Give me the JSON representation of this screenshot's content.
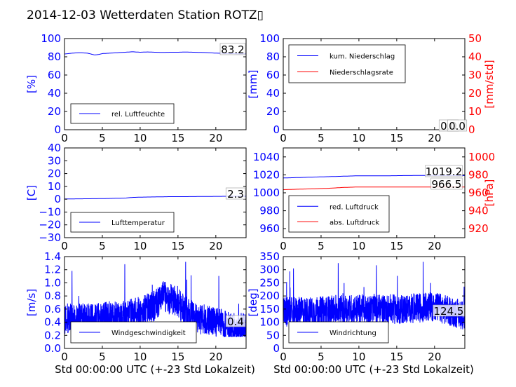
{
  "title": "2014-12-03 Wetterdaten Station ROTZ▯",
  "xlabel": "Std 00:00:00 UTC (+-23 Std Lokalzeit)",
  "colors": {
    "left_axis": "#0000ff",
    "right_axis": "#ff0000",
    "series_blue": "#0000ff",
    "series_red": "#ff0000",
    "frame": "#000000"
  },
  "chart_data": [
    {
      "id": "humidity",
      "type": "line",
      "xlim": [
        0,
        24
      ],
      "xticks": [
        0,
        5,
        10,
        15,
        20
      ],
      "ylabel": "[%]",
      "ylim": [
        0,
        100
      ],
      "yticks": [
        0,
        20,
        40,
        60,
        80,
        100
      ],
      "series": [
        {
          "name": "rel. Luftfeuchte",
          "color": "#0000ff",
          "x": [
            0,
            1,
            2,
            3,
            4,
            4.5,
            5,
            6,
            7,
            8,
            9,
            10,
            11,
            12,
            13,
            14,
            15,
            16,
            17,
            18,
            19,
            20,
            21,
            22,
            23,
            24
          ],
          "y": [
            83,
            84,
            84.5,
            84,
            82,
            82.5,
            83.5,
            84,
            84.5,
            85,
            85.5,
            85,
            85.3,
            85,
            84.8,
            85,
            85,
            85.2,
            85,
            84.8,
            84.5,
            84,
            83.8,
            83.5,
            83.3,
            83.2
          ]
        }
      ],
      "annotations": [
        "83.2"
      ],
      "legend_placement": "lower-left"
    },
    {
      "id": "precipitation",
      "type": "line",
      "xlim": [
        0,
        24
      ],
      "xticks": [
        0,
        5,
        10,
        15,
        20
      ],
      "ylabel": "[mm]",
      "ylim": [
        0,
        100
      ],
      "yticks": [
        0,
        20,
        40,
        60,
        80,
        100
      ],
      "y2label": "[mm/std]",
      "y2lim": [
        0,
        50
      ],
      "y2ticks": [
        0,
        10,
        20,
        30,
        40,
        50
      ],
      "series": [
        {
          "name": "kum. Niederschlag",
          "color": "#0000ff",
          "axis": "left",
          "x": [
            0,
            24
          ],
          "y": [
            0,
            0
          ]
        },
        {
          "name": "Niederschlagsrate",
          "color": "#ff0000",
          "axis": "right",
          "x": [
            0,
            24
          ],
          "y": [
            0,
            0
          ]
        }
      ],
      "annotations": [
        "0.0",
        "0.0"
      ],
      "legend_placement": "upper-left"
    },
    {
      "id": "temperature",
      "type": "line",
      "xlim": [
        0,
        24
      ],
      "xticks": [
        0,
        5,
        10,
        15,
        20
      ],
      "ylabel": "[C]",
      "ylim": [
        -30,
        40
      ],
      "yticks": [
        -30,
        -20,
        -10,
        0,
        10,
        20,
        30,
        40
      ],
      "series": [
        {
          "name": "Lufttemperatur",
          "color": "#0000ff",
          "x": [
            0,
            2,
            4,
            6,
            8,
            9,
            10,
            12,
            14,
            16,
            18,
            20,
            22,
            24
          ],
          "y": [
            0.2,
            0.3,
            0.4,
            0.6,
            0.9,
            1.4,
            1.6,
            1.8,
            2.0,
            2.0,
            2.1,
            2.2,
            2.3,
            2.3
          ]
        }
      ],
      "annotations": [
        "2.3"
      ],
      "legend_placement": "lower-left"
    },
    {
      "id": "pressure",
      "type": "line",
      "xlim": [
        0,
        24
      ],
      "xticks": [
        0,
        5,
        10,
        15,
        20
      ],
      "ylabel": "",
      "ylim": [
        950,
        1050
      ],
      "yticks": [
        960,
        980,
        1000,
        1020,
        1040
      ],
      "y2label": "[hPa]",
      "y2lim": [
        910,
        1010
      ],
      "y2ticks": [
        920,
        940,
        960,
        980,
        1000
      ],
      "series": [
        {
          "name": "red. Luftdruck",
          "color": "#0000ff",
          "axis": "left",
          "x": [
            0,
            2,
            4,
            6,
            8,
            10,
            12,
            14,
            16,
            18,
            20,
            22,
            24
          ],
          "y": [
            1016.5,
            1017,
            1017.5,
            1018,
            1018.5,
            1019,
            1019,
            1019,
            1019.2,
            1019.3,
            1019.5,
            1019.3,
            1019.2
          ]
        },
        {
          "name": "abs. Luftdruck",
          "color": "#ff0000",
          "axis": "right",
          "x": [
            0,
            2,
            4,
            6,
            8,
            10,
            12,
            14,
            16,
            18,
            20,
            22,
            24
          ],
          "y": [
            963.5,
            964,
            964.5,
            965,
            966,
            966.5,
            966.5,
            966.5,
            966.5,
            966.5,
            966.5,
            966.5,
            966.5
          ]
        }
      ],
      "annotations": [
        "1019.2",
        "966.5"
      ],
      "legend_placement": "lower-left"
    },
    {
      "id": "wind_speed",
      "type": "line",
      "xlim": [
        0,
        24
      ],
      "xticks": [
        0,
        5,
        10,
        15,
        20
      ],
      "ylabel": "[m/s]",
      "ylim": [
        0,
        1.4
      ],
      "yticks": [
        0.0,
        0.2,
        0.4,
        0.6,
        0.8,
        1.0,
        1.2,
        1.4
      ],
      "series": [
        {
          "name": "Windgeschwindigkeit",
          "color": "#0000ff",
          "noisy": true,
          "x": [
            0,
            2,
            4,
            6,
            8,
            10,
            11,
            12,
            13,
            14,
            15,
            16,
            17,
            18,
            19,
            20,
            21,
            22,
            23,
            24
          ],
          "y_mean": [
            0.45,
            0.45,
            0.45,
            0.5,
            0.5,
            0.55,
            0.6,
            0.65,
            0.8,
            0.75,
            0.7,
            0.55,
            0.5,
            0.45,
            0.45,
            0.4,
            0.35,
            0.3,
            0.3,
            0.3
          ],
          "y_max": 1.32,
          "y_min": 0.18
        }
      ],
      "annotations": [
        "0.4"
      ],
      "legend_placement": "lower-left"
    },
    {
      "id": "wind_direction",
      "type": "line",
      "xlim": [
        0,
        24
      ],
      "xticks": [
        0,
        5,
        10,
        15,
        20
      ],
      "ylabel": "[deg]",
      "ylim": [
        0,
        350
      ],
      "yticks": [
        0,
        50,
        100,
        150,
        200,
        250,
        300,
        350
      ],
      "series": [
        {
          "name": "Windrichtung",
          "color": "#0000ff",
          "noisy": true,
          "x": [
            0,
            4,
            8,
            12,
            16,
            20,
            24
          ],
          "y_mean": [
            140,
            140,
            150,
            150,
            150,
            160,
            125
          ],
          "y_max": 330,
          "y_min": 60
        }
      ],
      "annotations": [
        "124.5"
      ],
      "legend_placement": "lower-left"
    }
  ]
}
